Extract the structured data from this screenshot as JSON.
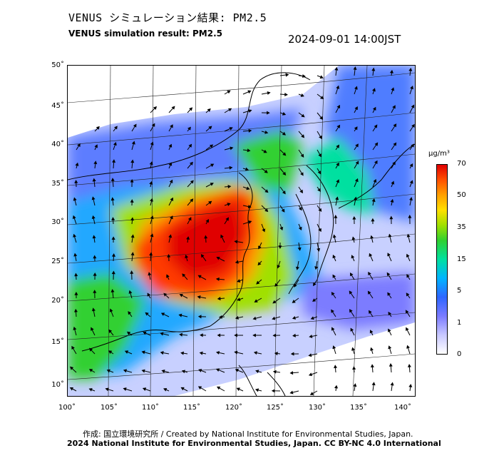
{
  "header": {
    "title_jp": "VENUS シミュレーション結果: PM2.5",
    "title_en": "VENUS simulation result: PM2.5",
    "timestamp": "2024-09-01 14:00JST"
  },
  "map": {
    "lat_ticks": [
      "50˚",
      "45˚",
      "40˚",
      "35˚",
      "30˚",
      "25˚",
      "20˚",
      "15˚",
      "10˚"
    ],
    "lon_ticks": [
      "100˚",
      "105˚",
      "110˚",
      "115˚",
      "120˚",
      "125˚",
      "130˚",
      "135˚",
      "140˚"
    ],
    "lat_range": [
      9,
      51
    ],
    "lon_range": [
      100,
      141
    ],
    "variable": "PM2.5",
    "overlay": "wind vectors"
  },
  "colorbar": {
    "unit": "μg/m³",
    "ticks": [
      "70",
      "50",
      "35",
      "15",
      "5",
      "1",
      "0"
    ],
    "colors": [
      "#ffffff",
      "#7b7bff",
      "#00b4ff",
      "#30d030",
      "#ffe000",
      "#ffa000",
      "#e00000"
    ]
  },
  "footer": {
    "credit_jp": "作成: 国立環境研究所 / Created by National Institute for Environmental Studies, Japan.",
    "copyright": "2024 National Institute for Environmental Studies, Japan. CC BY-NC 4.0 International"
  }
}
